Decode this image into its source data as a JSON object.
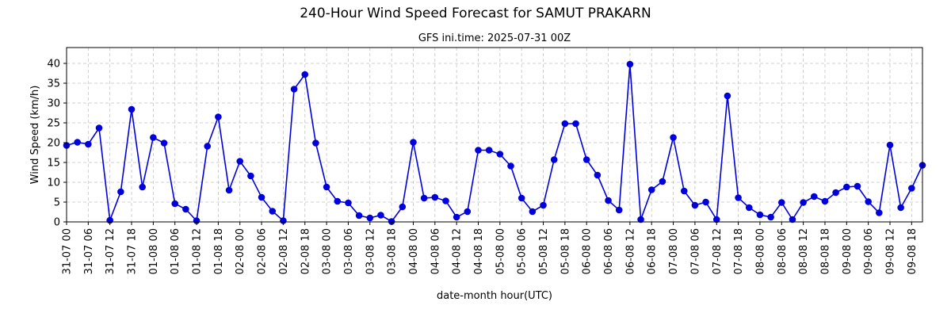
{
  "chart_data": {
    "type": "line",
    "title": "240-Hour Wind Speed Forecast for SAMUT PRAKARN",
    "subtitle": "GFS ini.time: 2025-07-31 00Z",
    "xlabel": "date-month hour(UTC)",
    "ylabel": "Wind Speed (km/h)",
    "ylim": [
      0,
      44
    ],
    "yticks": [
      0,
      5,
      10,
      15,
      20,
      25,
      30,
      35,
      40
    ],
    "grid": true,
    "x_tick_every": 2,
    "x": [
      "31-07 00",
      "31-07 03",
      "31-07 06",
      "31-07 09",
      "31-07 12",
      "31-07 15",
      "31-07 18",
      "31-07 21",
      "01-08 00",
      "01-08 03",
      "01-08 06",
      "01-08 09",
      "01-08 12",
      "01-08 15",
      "01-08 18",
      "01-08 21",
      "02-08 00",
      "02-08 03",
      "02-08 06",
      "02-08 09",
      "02-08 12",
      "02-08 15",
      "02-08 18",
      "02-08 21",
      "03-08 00",
      "03-08 03",
      "03-08 06",
      "03-08 09",
      "03-08 12",
      "03-08 15",
      "03-08 18",
      "03-08 21",
      "04-08 00",
      "04-08 03",
      "04-08 06",
      "04-08 09",
      "04-08 12",
      "04-08 15",
      "04-08 18",
      "04-08 21",
      "05-08 00",
      "05-08 03",
      "05-08 06",
      "05-08 09",
      "05-08 12",
      "05-08 15",
      "05-08 18",
      "05-08 21",
      "06-08 00",
      "06-08 03",
      "06-08 06",
      "06-08 09",
      "06-08 12",
      "06-08 15",
      "06-08 18",
      "06-08 21",
      "07-08 00",
      "07-08 03",
      "07-08 06",
      "07-08 09",
      "07-08 12",
      "07-08 15",
      "07-08 18",
      "07-08 21",
      "08-08 00",
      "08-08 03",
      "08-08 06",
      "08-08 09",
      "08-08 12",
      "08-08 15",
      "08-08 18",
      "08-08 21",
      "09-08 00",
      "09-08 03",
      "09-08 06",
      "09-08 09",
      "09-08 12",
      "09-08 15",
      "09-08 18",
      "09-08 21"
    ],
    "series": [
      {
        "color": "#0000dd",
        "values": [
          19.3,
          20.1,
          19.6,
          23.7,
          0.4,
          7.6,
          28.4,
          8.8,
          21.3,
          19.9,
          4.6,
          3.2,
          0.3,
          19.1,
          26.5,
          8.0,
          15.3,
          11.6,
          6.2,
          2.7,
          0.3,
          33.5,
          37.2,
          19.9,
          8.8,
          5.2,
          4.8,
          1.6,
          1.0,
          1.7,
          0.1,
          3.8,
          20.1,
          6.0,
          6.2,
          5.3,
          1.2,
          2.6,
          18.1,
          18.1,
          17.1,
          14.1,
          6.0,
          2.6,
          4.2,
          15.7,
          24.8,
          24.8,
          15.7,
          11.8,
          5.4,
          3.0,
          39.8,
          0.6,
          8.1,
          10.2,
          21.3,
          7.8,
          4.2,
          5.0,
          0.6,
          31.8,
          6.1,
          3.6,
          1.8,
          1.2,
          4.9,
          0.6,
          4.9,
          6.4,
          5.2,
          7.4,
          8.8,
          9.0,
          5.1,
          2.3,
          19.4,
          3.6,
          8.5,
          14.3
        ]
      }
    ]
  }
}
